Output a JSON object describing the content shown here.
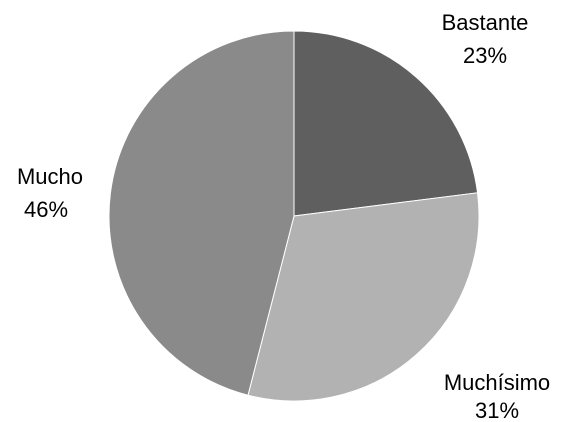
{
  "chart_data": {
    "type": "pie",
    "title": "",
    "categories": [
      "Bastante",
      "Muchísimo",
      "Mucho"
    ],
    "values": [
      23,
      31,
      46
    ],
    "value_labels": [
      "23%",
      "31%",
      "46%"
    ],
    "colors": [
      "#5f5f5f",
      "#b2b2b2",
      "#8a8a8a"
    ],
    "start_angle_deg": 0,
    "direction": "clockwise",
    "legend": "none",
    "data_labels": "outside"
  }
}
